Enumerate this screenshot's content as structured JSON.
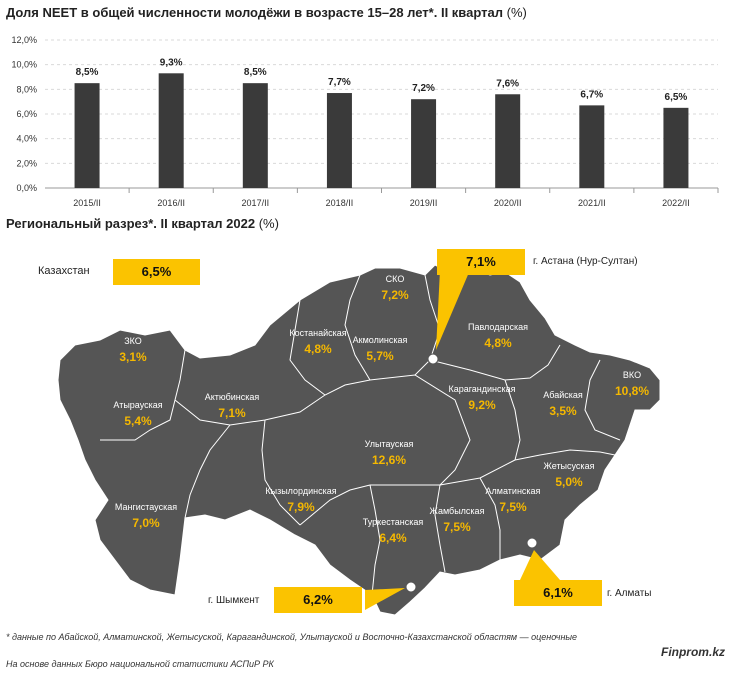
{
  "chart_data": {
    "type": "bar",
    "title_bold": "Доля NEET в общей численности молодёжи в возрасте 15–28 лет*. II квартал",
    "title_unit": "(%)",
    "categories": [
      "2015/II",
      "2016/II",
      "2017/II",
      "2018/II",
      "2019/II",
      "2020/II",
      "2021/II",
      "2022/II"
    ],
    "values": [
      8.5,
      9.3,
      8.5,
      7.7,
      7.2,
      7.6,
      6.7,
      6.5
    ],
    "value_labels": [
      "8,5%",
      "9,3%",
      "8,5%",
      "7,7%",
      "7,2%",
      "7,6%",
      "6,7%",
      "6,5%"
    ],
    "ylim": [
      0,
      12
    ],
    "yticks": [
      0,
      2,
      4,
      6,
      8,
      10,
      12
    ],
    "ytick_labels": [
      "0,0%",
      "2,0%",
      "4,0%",
      "6,0%",
      "8,0%",
      "10,0%",
      "12,0%"
    ],
    "grid": true,
    "bar_color": "#3a3a3a"
  },
  "regional": {
    "title_bold": "Региональный разрез*. II квартал 2022",
    "title_unit": "(%)",
    "kazakhstan": {
      "label": "Казахстан",
      "value": "6,5%"
    },
    "astana": {
      "label": "г. Астана (Нур-Султан)",
      "value": "7,1%"
    },
    "shymkent": {
      "label": "г. Шымкент",
      "value": "6,2%"
    },
    "almaty": {
      "label": "г. Алматы",
      "value": "6,1%"
    },
    "regions": [
      {
        "name": "СКО",
        "value": "7,2%"
      },
      {
        "name": "ЗКО",
        "value": "3,1%"
      },
      {
        "name": "Костанайская",
        "value": "4,8%"
      },
      {
        "name": "Акмолинская",
        "value": "5,7%"
      },
      {
        "name": "Павлодарская",
        "value": "4,8%"
      },
      {
        "name": "Атырауская",
        "value": "5,4%"
      },
      {
        "name": "Актюбинская",
        "value": "7,1%"
      },
      {
        "name": "Карагандинская",
        "value": "9,2%"
      },
      {
        "name": "Абайская",
        "value": "3,5%"
      },
      {
        "name": "ВКО",
        "value": "10,8%"
      },
      {
        "name": "Улытауская",
        "value": "12,6%"
      },
      {
        "name": "Жетысуская",
        "value": "5,0%"
      },
      {
        "name": "Мангистауская",
        "value": "7,0%"
      },
      {
        "name": "Кызылординская",
        "value": "7,9%"
      },
      {
        "name": "Туркестанская",
        "value": "6,4%"
      },
      {
        "name": "Жамбылская",
        "value": "7,5%"
      },
      {
        "name": "Алматинская",
        "value": "7,5%"
      }
    ],
    "map_color": "#555555",
    "accent": "#fbc300"
  },
  "footnote": "* данные по Абайской, Алматинской, Жетысуской, Карагандинской, Улытауской и Восточно-Казахстанской областям — оценочные",
  "source": "На основе данных Бюро национальной статистики АСПиР РК",
  "brand": "Finprom.kz"
}
